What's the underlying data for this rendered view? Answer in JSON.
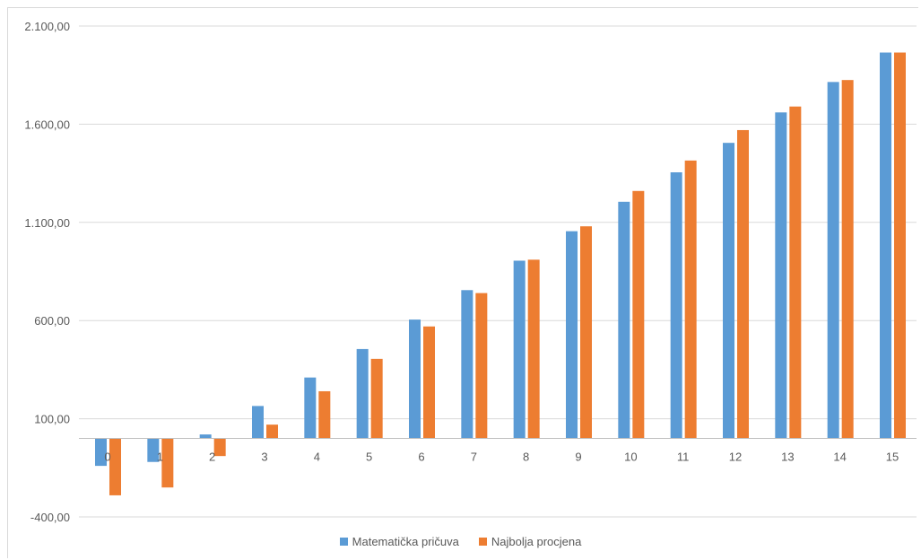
{
  "chart_data": {
    "type": "bar",
    "categories": [
      "0",
      "1",
      "2",
      "3",
      "4",
      "5",
      "6",
      "7",
      "8",
      "9",
      "10",
      "11",
      "12",
      "13",
      "14",
      "15"
    ],
    "series": [
      {
        "name": "Matematička pričuva",
        "color": "#5b9bd5",
        "values": [
          -140,
          -120,
          20,
          165,
          310,
          455,
          605,
          755,
          905,
          1055,
          1205,
          1355,
          1505,
          1660,
          1815,
          1965
        ]
      },
      {
        "name": "Najbolja procjena",
        "color": "#ed7d31",
        "values": [
          -290,
          -250,
          -90,
          70,
          240,
          405,
          570,
          740,
          910,
          1080,
          1260,
          1415,
          1570,
          1690,
          1825,
          1965
        ]
      }
    ],
    "yaxis": {
      "ticks": [
        -400,
        100,
        600,
        1100,
        1600,
        2100
      ],
      "tick_labels": [
        "-400,00",
        "100,00",
        "600,00",
        "1.100,00",
        "1.600,00",
        "2.100,00"
      ],
      "ylim": [
        -400,
        2100
      ]
    },
    "title": "",
    "xlabel": "",
    "ylabel": "",
    "grid": true,
    "legend_position": "bottom"
  }
}
